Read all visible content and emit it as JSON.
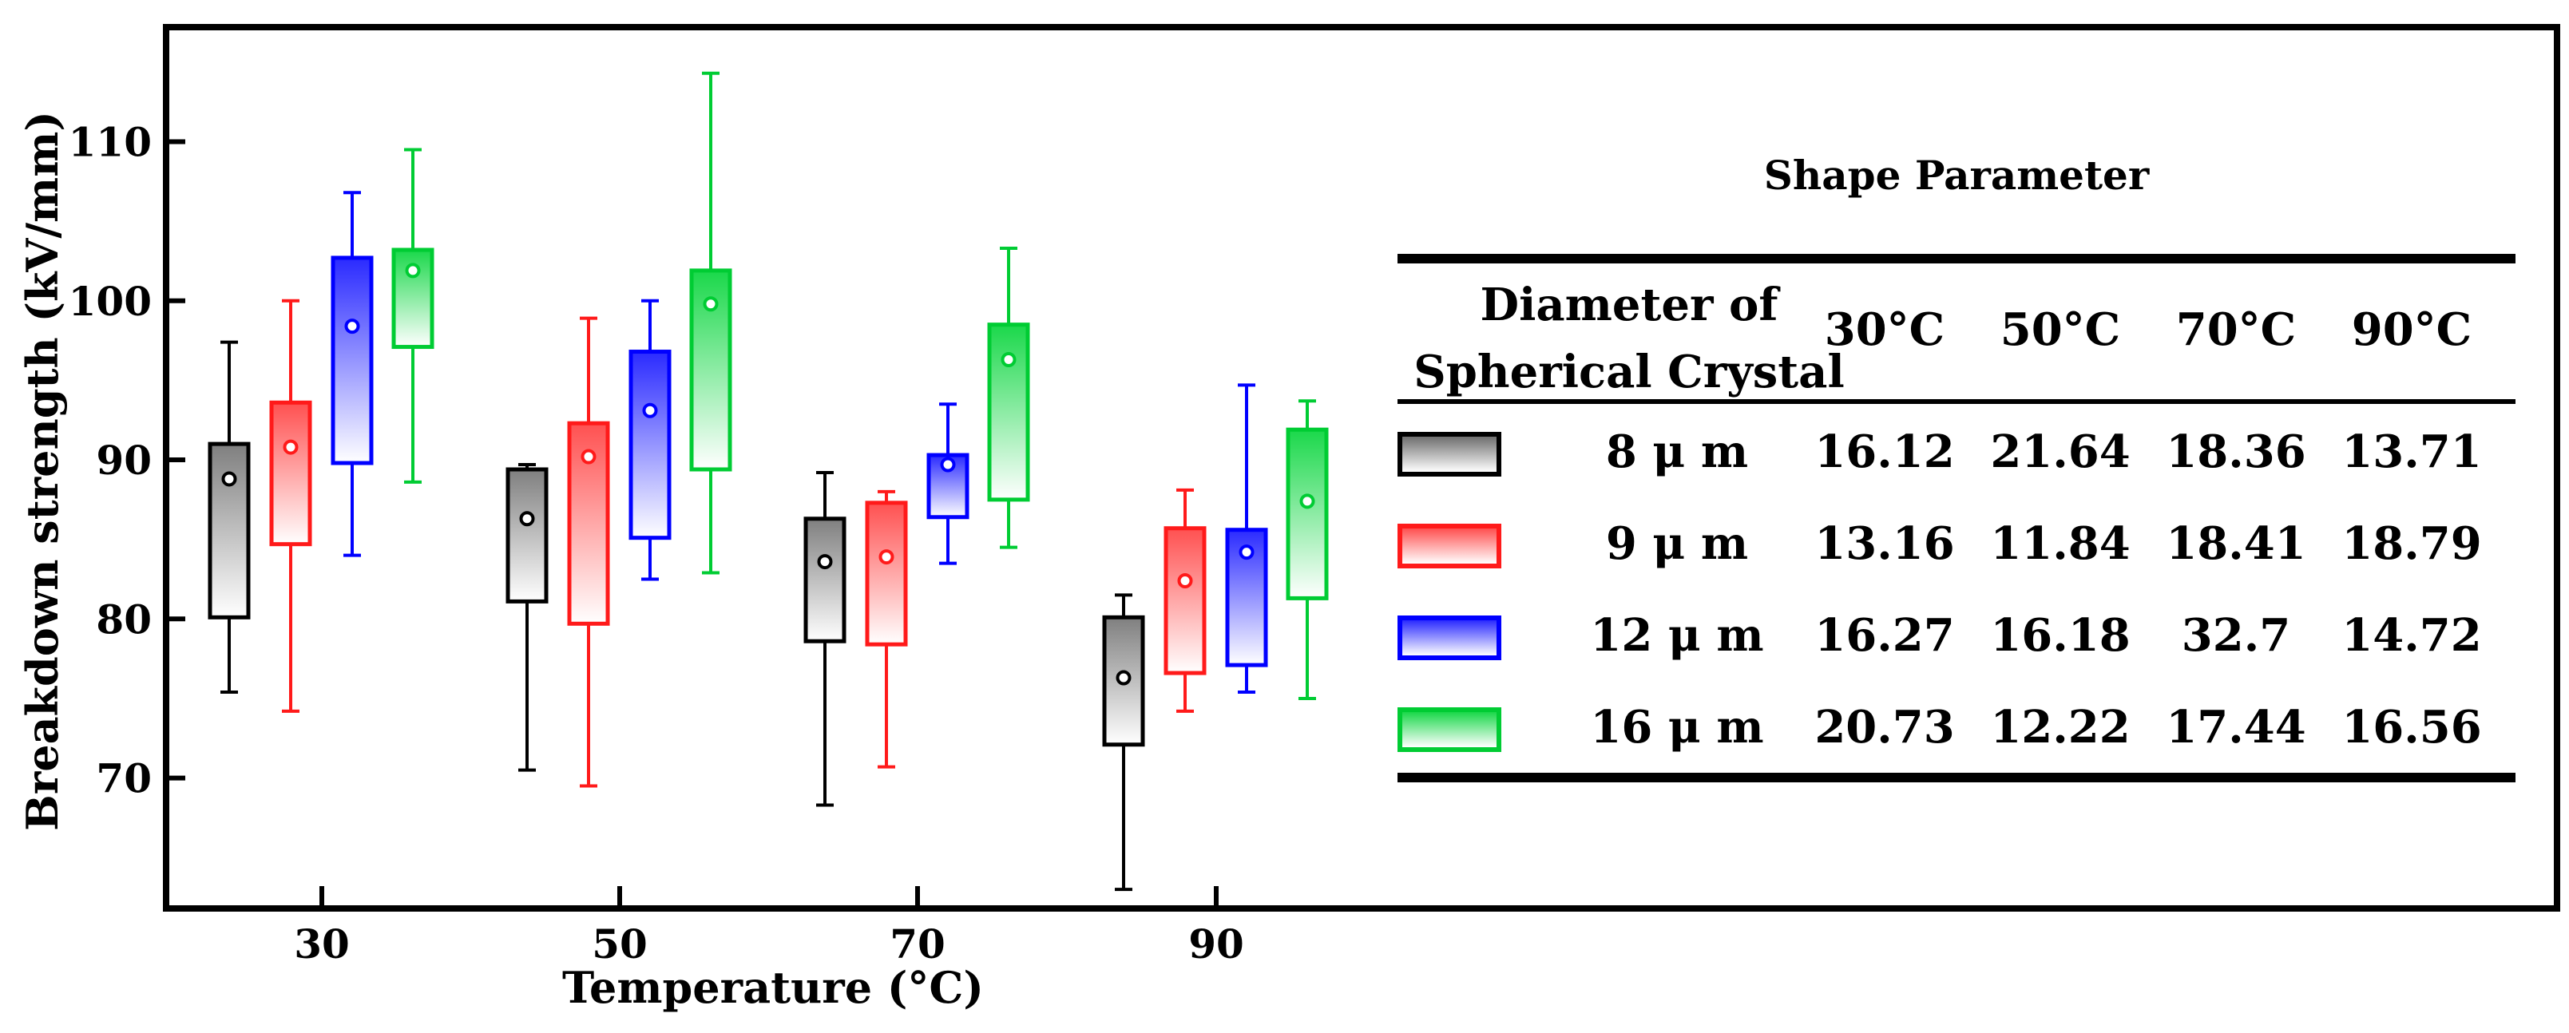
{
  "chart_data": {
    "type": "box",
    "xlabel": "Temperature (°C)",
    "ylabel": "Breakdown strength (kV/mm)",
    "categories": [
      "30",
      "50",
      "70",
      "90"
    ],
    "yticks": [
      70,
      80,
      90,
      100,
      110
    ],
    "ylim": [
      62,
      117
    ],
    "series": [
      {
        "name": "8 μ m",
        "color": "#000000",
        "fill": "#7f7f7f",
        "boxes": [
          {
            "min": 75.4,
            "q1": 80.1,
            "q3": 91.0,
            "max": 97.4,
            "mean": 88.8
          },
          {
            "min": 70.5,
            "q1": 81.1,
            "q3": 89.4,
            "max": 89.7,
            "mean": 86.3
          },
          {
            "min": 68.3,
            "q1": 78.6,
            "q3": 86.3,
            "max": 89.2,
            "mean": 83.6
          },
          {
            "min": 63.0,
            "q1": 72.1,
            "q3": 80.1,
            "max": 81.5,
            "mean": 76.3
          }
        ]
      },
      {
        "name": "9 μ m",
        "color": "#ff1a1a",
        "fill": "#ff5050",
        "boxes": [
          {
            "min": 74.2,
            "q1": 84.7,
            "q3": 93.6,
            "max": 100.0,
            "mean": 90.8
          },
          {
            "min": 69.5,
            "q1": 79.7,
            "q3": 92.3,
            "max": 98.9,
            "mean": 90.2
          },
          {
            "min": 70.7,
            "q1": 78.4,
            "q3": 87.3,
            "max": 88.0,
            "mean": 83.9
          },
          {
            "min": 74.2,
            "q1": 76.6,
            "q3": 85.7,
            "max": 88.1,
            "mean": 82.4
          }
        ]
      },
      {
        "name": "12 μ m",
        "color": "#0000ff",
        "fill": "#2a2aff",
        "boxes": [
          {
            "min": 84.0,
            "q1": 89.8,
            "q3": 102.7,
            "max": 106.8,
            "mean": 98.4
          },
          {
            "min": 82.5,
            "q1": 85.1,
            "q3": 96.8,
            "max": 100.0,
            "mean": 93.1
          },
          {
            "min": 83.5,
            "q1": 86.4,
            "q3": 90.3,
            "max": 93.5,
            "mean": 89.7
          },
          {
            "min": 75.4,
            "q1": 77.1,
            "q3": 85.6,
            "max": 94.7,
            "mean": 84.2
          }
        ]
      },
      {
        "name": "16 μ m",
        "color": "#00cc33",
        "fill": "#1ad84a",
        "boxes": [
          {
            "min": 88.6,
            "q1": 97.1,
            "q3": 103.2,
            "max": 109.5,
            "mean": 101.9
          },
          {
            "min": 82.9,
            "q1": 89.4,
            "q3": 101.9,
            "max": 114.3,
            "mean": 99.8
          },
          {
            "min": 84.5,
            "q1": 87.5,
            "q3": 98.5,
            "max": 103.3,
            "mean": 96.3
          },
          {
            "min": 75.0,
            "q1": 81.3,
            "q3": 91.9,
            "max": 93.7,
            "mean": 87.4
          }
        ]
      }
    ],
    "table": {
      "title": "Shape Parameter",
      "row_header_line1": "Diameter of",
      "row_header_line2": "Spherical Crystal",
      "columns": [
        "30°C",
        "50°C",
        "70°C",
        "90°C"
      ],
      "rows": [
        {
          "label": "8 μ m",
          "values": [
            "16.12",
            "21.64",
            "18.36",
            "13.71"
          ]
        },
        {
          "label": "9 μ m",
          "values": [
            "13.16",
            "11.84",
            "18.41",
            "18.79"
          ]
        },
        {
          "label": "12 μ m",
          "values": [
            "16.27",
            "16.18",
            "32.7",
            "14.72"
          ]
        },
        {
          "label": "16 μ m",
          "values": [
            "20.73",
            "12.22",
            "17.44",
            "16.56"
          ]
        }
      ]
    }
  }
}
